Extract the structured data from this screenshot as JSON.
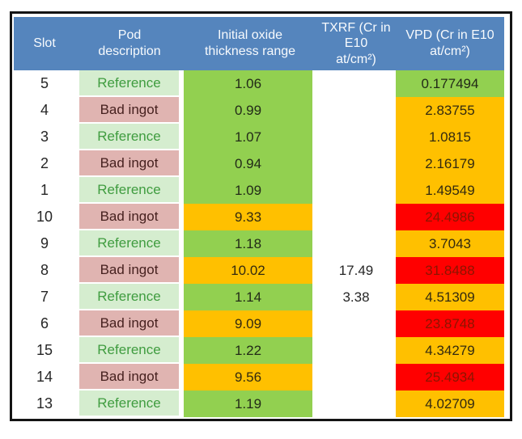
{
  "colors": {
    "header_bg": "#5585bd",
    "header_text": "#f7fafd",
    "reference_bg": "#d5edcf",
    "reference_text": "#3f9c3f",
    "bad_ingot_bg": "#e0b4b1",
    "bad_ingot_text": "#46211f",
    "level_green": "#92d050",
    "level_orange": "#ffc000",
    "level_red": "#ff0000",
    "red_cell_text": "#8b1500",
    "frame_border": "#141414"
  },
  "table": {
    "columns": [
      {
        "id": "slot",
        "label": "Slot"
      },
      {
        "id": "pod",
        "label": "Pod\ndescription"
      },
      {
        "id": "oxide",
        "label": "Initial oxide\nthickness range"
      },
      {
        "id": "txrf",
        "label": "TXRF (Cr in E10\nat/cm²)"
      },
      {
        "id": "vpd",
        "label": "VPD (Cr in E10\nat/cm²)"
      }
    ],
    "rows": [
      {
        "slot": "5",
        "pod": "Reference",
        "pod_type": "reference",
        "oxide": "1.06",
        "oxide_level": "green",
        "txrf": "",
        "vpd": "0.177494",
        "vpd_level": "green"
      },
      {
        "slot": "4",
        "pod": "Bad ingot",
        "pod_type": "bad",
        "oxide": "0.99",
        "oxide_level": "green",
        "txrf": "",
        "vpd": "2.83755",
        "vpd_level": "orange"
      },
      {
        "slot": "3",
        "pod": "Reference",
        "pod_type": "reference",
        "oxide": "1.07",
        "oxide_level": "green",
        "txrf": "",
        "vpd": "1.0815",
        "vpd_level": "orange"
      },
      {
        "slot": "2",
        "pod": "Bad ingot",
        "pod_type": "bad",
        "oxide": "0.94",
        "oxide_level": "green",
        "txrf": "",
        "vpd": "2.16179",
        "vpd_level": "orange"
      },
      {
        "slot": "1",
        "pod": "Reference",
        "pod_type": "reference",
        "oxide": "1.09",
        "oxide_level": "green",
        "txrf": "",
        "vpd": "1.49549",
        "vpd_level": "orange"
      },
      {
        "slot": "10",
        "pod": "Bad ingot",
        "pod_type": "bad",
        "oxide": "9.33",
        "oxide_level": "orange",
        "txrf": "",
        "vpd": "24.4986",
        "vpd_level": "red"
      },
      {
        "slot": "9",
        "pod": "Reference",
        "pod_type": "reference",
        "oxide": "1.18",
        "oxide_level": "green",
        "txrf": "",
        "vpd": "3.7043",
        "vpd_level": "orange"
      },
      {
        "slot": "8",
        "pod": "Bad ingot",
        "pod_type": "bad",
        "oxide": "10.02",
        "oxide_level": "orange",
        "txrf": "17.49",
        "vpd": "31.8488",
        "vpd_level": "red"
      },
      {
        "slot": "7",
        "pod": "Reference",
        "pod_type": "reference",
        "oxide": "1.14",
        "oxide_level": "green",
        "txrf": "3.38",
        "vpd": "4.51309",
        "vpd_level": "orange"
      },
      {
        "slot": "6",
        "pod": "Bad ingot",
        "pod_type": "bad",
        "oxide": "9.09",
        "oxide_level": "orange",
        "txrf": "",
        "vpd": "23.8748",
        "vpd_level": "red"
      },
      {
        "slot": "15",
        "pod": "Reference",
        "pod_type": "reference",
        "oxide": "1.22",
        "oxide_level": "green",
        "txrf": "",
        "vpd": "4.34279",
        "vpd_level": "orange"
      },
      {
        "slot": "14",
        "pod": "Bad ingot",
        "pod_type": "bad",
        "oxide": "9.56",
        "oxide_level": "orange",
        "txrf": "",
        "vpd": "25.4934",
        "vpd_level": "red"
      },
      {
        "slot": "13",
        "pod": "Reference",
        "pod_type": "reference",
        "oxide": "1.19",
        "oxide_level": "green",
        "txrf": "",
        "vpd": "4.02709",
        "vpd_level": "orange"
      }
    ]
  },
  "chart_data": {
    "type": "table",
    "title": "",
    "columns": [
      "Slot",
      "Pod description",
      "Initial oxide thickness range",
      "TXRF (Cr in E10 at/cm²)",
      "VPD (Cr in E10 at/cm²)"
    ],
    "rows": [
      [
        5,
        "Reference",
        1.06,
        null,
        0.177494
      ],
      [
        4,
        "Bad ingot",
        0.99,
        null,
        2.83755
      ],
      [
        3,
        "Reference",
        1.07,
        null,
        1.0815
      ],
      [
        2,
        "Bad ingot",
        0.94,
        null,
        2.16179
      ],
      [
        1,
        "Reference",
        1.09,
        null,
        1.49549
      ],
      [
        10,
        "Bad ingot",
        9.33,
        null,
        24.4986
      ],
      [
        9,
        "Reference",
        1.18,
        null,
        3.7043
      ],
      [
        8,
        "Bad ingot",
        10.02,
        17.49,
        31.8488
      ],
      [
        7,
        "Reference",
        1.14,
        3.38,
        4.51309
      ],
      [
        6,
        "Bad ingot",
        9.09,
        null,
        23.8748
      ],
      [
        15,
        "Reference",
        1.22,
        null,
        4.34279
      ],
      [
        14,
        "Bad ingot",
        9.56,
        null,
        25.4934
      ],
      [
        13,
        "Reference",
        1.19,
        null,
        4.02709
      ]
    ]
  }
}
